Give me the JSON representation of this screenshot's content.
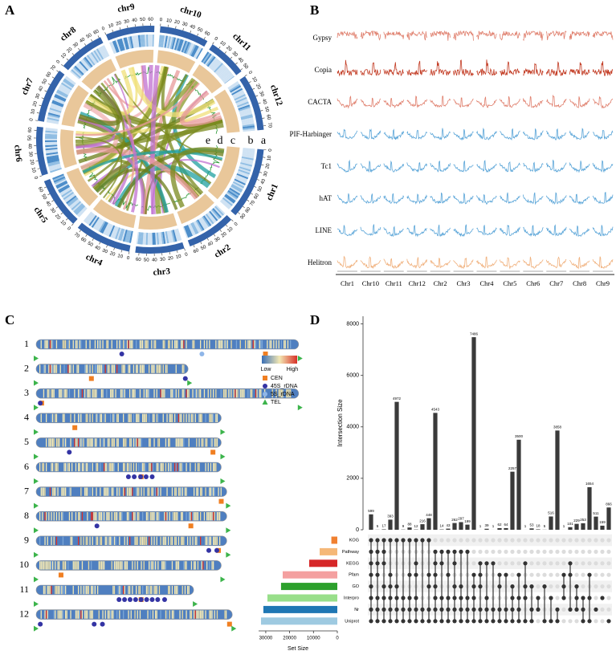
{
  "chart_data": [
    {
      "type": "circos",
      "panel": "A",
      "chromosomes": [
        {
          "name": "chr1",
          "length": 95,
          "ticks": [
            0,
            10,
            20,
            30,
            40,
            50,
            60,
            70,
            80,
            90
          ]
        },
        {
          "name": "chr2",
          "length": 65,
          "ticks": [
            0,
            10,
            20,
            30,
            40,
            50,
            60
          ]
        },
        {
          "name": "chr3",
          "length": 65,
          "ticks": [
            0,
            10,
            20,
            30,
            40,
            50,
            60
          ]
        },
        {
          "name": "chr4",
          "length": 75,
          "ticks": [
            0,
            10,
            20,
            30,
            40,
            50,
            60,
            70
          ]
        },
        {
          "name": "chr5",
          "length": 68,
          "ticks": [
            0,
            10,
            20,
            30,
            40,
            50,
            60
          ]
        },
        {
          "name": "chr6",
          "length": 65,
          "ticks": [
            0,
            10,
            20,
            30,
            40,
            50,
            60
          ]
        },
        {
          "name": "chr7",
          "length": 72,
          "ticks": [
            0,
            10,
            20,
            30,
            40,
            50,
            60,
            70
          ]
        },
        {
          "name": "chr8",
          "length": 62,
          "ticks": [
            0,
            10,
            20,
            30,
            40,
            50,
            60
          ]
        },
        {
          "name": "chr9",
          "length": 65,
          "ticks": [
            0,
            10,
            20,
            30,
            40,
            50,
            60
          ]
        },
        {
          "name": "chr10",
          "length": 65,
          "ticks": [
            0,
            10,
            20,
            30,
            40,
            50,
            60
          ]
        },
        {
          "name": "chr11",
          "length": 52,
          "ticks": [
            0,
            10,
            20,
            30,
            40,
            50
          ]
        },
        {
          "name": "chr12",
          "length": 75,
          "ticks": [
            0,
            10,
            20,
            30,
            40,
            50,
            60,
            70
          ]
        }
      ],
      "tracks": [
        "a",
        "b",
        "c",
        "d",
        "e"
      ]
    },
    {
      "type": "te-density",
      "panel": "B",
      "series": [
        {
          "name": "Gypsy",
          "color": "#e0806e"
        },
        {
          "name": "Copia",
          "color": "#c23a22"
        },
        {
          "name": "CACTA",
          "color": "#e0806e"
        },
        {
          "name": "PIF-Harbinger",
          "color": "#5aa5d8"
        },
        {
          "name": "Tc1",
          "color": "#5aa5d8"
        },
        {
          "name": "hAT",
          "color": "#5aa5d8"
        },
        {
          "name": "LINE",
          "color": "#5aa5d8"
        },
        {
          "name": "Helitron",
          "color": "#f0b07c"
        }
      ],
      "categories": [
        "Chr1",
        "Chr10",
        "Chr11",
        "Chr12",
        "Chr2",
        "Chr3",
        "Chr4",
        "Chr5",
        "Chr6",
        "Chr7",
        "Chr8",
        "Chr9"
      ]
    },
    {
      "type": "ideogram",
      "panel": "C",
      "chromosomes": [
        {
          "label": "1",
          "length": 95,
          "cen": 83,
          "rdna45s": [
            31
          ],
          "rdna5s": [
            60
          ]
        },
        {
          "label": "2",
          "length": 55,
          "cen": 20,
          "rdna45s": [
            54
          ],
          "rdna5s": []
        },
        {
          "label": "3",
          "length": 95,
          "cen": 2,
          "rdna45s": [
            1.5
          ],
          "rdna5s": []
        },
        {
          "label": "4",
          "length": 67,
          "cen": 14,
          "rdna45s": [],
          "rdna5s": []
        },
        {
          "label": "5",
          "length": 67,
          "cen": 64,
          "rdna45s": [
            12
          ],
          "rdna5s": []
        },
        {
          "label": "6",
          "length": 67,
          "cen": 38,
          "rdna45s": [
            33.4,
            35.5,
            37.8,
            39.8,
            42
          ],
          "rdna5s": []
        },
        {
          "label": "7",
          "length": 69,
          "cen": 67,
          "rdna45s": [],
          "rdna5s": []
        },
        {
          "label": "8",
          "length": 69,
          "cen": 56,
          "rdna45s": [
            22
          ],
          "rdna5s": []
        },
        {
          "label": "9",
          "length": 69,
          "cen": 66,
          "rdna45s": [
            62.5,
            65.4
          ],
          "rdna5s": []
        },
        {
          "label": "10",
          "length": 67,
          "cen": 9,
          "rdna45s": [],
          "rdna5s": []
        },
        {
          "label": "11",
          "length": 57,
          "cen": 38,
          "rdna45s": [
            30,
            32,
            34,
            36,
            38,
            40,
            42,
            44,
            46.5
          ],
          "rdna5s": []
        },
        {
          "label": "12",
          "length": 71,
          "cen": 70,
          "rdna45s": [
            1.5,
            21,
            24
          ],
          "rdna5s": []
        }
      ],
      "legend": {
        "low": "Low",
        "high": "High",
        "colors": [
          "#3a6fb5",
          "#f3e8b4",
          "#d73027"
        ]
      },
      "markers": [
        {
          "name": "CEN",
          "color": "#f07f22"
        },
        {
          "name": "45S_rDNA",
          "color": "#3434a4"
        },
        {
          "name": "5S_rDNA",
          "color": "#8fb6e8"
        },
        {
          "name": "TEL",
          "color": "#3cb44b"
        }
      ]
    },
    {
      "type": "upset",
      "panel": "D",
      "ylabel": "Intersection Size",
      "xlabel": "Set Size",
      "values": [
        599,
        5,
        17,
        393,
        4972,
        9,
        88,
        12,
        216,
        448,
        4543,
        14,
        43,
        262,
        297,
        199,
        7486,
        1,
        39,
        1,
        62,
        64,
        2257,
        3500,
        1,
        53,
        18,
        5,
        516,
        3858,
        1,
        101,
        229,
        253,
        1654,
        511,
        159,
        866
      ],
      "ylim": [
        0,
        8300
      ],
      "yticks": [
        0,
        2000,
        4000,
        6000,
        8000
      ],
      "sets": [
        {
          "name": "KOG",
          "color": "#f08030",
          "size": 2500
        },
        {
          "name": "Pathway",
          "color": "#f5b878",
          "size": 7400
        },
        {
          "name": "KEGG",
          "color": "#d62728",
          "size": 11800
        },
        {
          "name": "Pfam",
          "color": "#f4a0a0",
          "size": 22900
        },
        {
          "name": "GO",
          "color": "#2ca02c",
          "size": 23600
        },
        {
          "name": "Interpro",
          "color": "#98df8a",
          "size": 29300
        },
        {
          "name": "Nr",
          "color": "#1f77b4",
          "size": 31000
        },
        {
          "name": "Uniprot",
          "color": "#9ecae1",
          "size": 32000
        }
      ],
      "xlim": [
        33000,
        0
      ],
      "xticks": [
        30000,
        20000,
        10000,
        0
      ],
      "membership": [
        [
          0,
          1,
          2,
          3,
          4,
          5,
          6,
          7
        ],
        [
          0,
          1,
          2,
          3,
          5,
          6,
          7
        ],
        [
          0,
          1,
          2,
          4,
          5,
          6,
          7
        ],
        [
          0,
          3,
          4,
          5,
          6,
          7
        ],
        [
          0,
          4,
          5,
          6,
          7
        ],
        [
          0,
          5,
          6,
          7
        ],
        [
          0,
          3,
          5,
          6,
          7
        ],
        [
          0,
          2,
          3,
          5,
          6,
          7
        ],
        [
          0,
          6,
          7
        ],
        [
          0,
          3,
          4,
          6,
          7
        ],
        [
          1,
          2,
          3,
          4,
          5,
          6,
          7
        ],
        [
          1,
          2,
          5,
          6,
          7
        ],
        [
          1,
          3,
          5,
          6,
          7
        ],
        [
          1,
          2,
          4,
          5,
          6,
          7
        ],
        [
          1,
          4,
          5,
          6,
          7
        ],
        [
          1,
          5,
          6,
          7
        ],
        [
          3,
          4,
          5,
          6,
          7
        ],
        [
          2,
          3,
          4,
          6,
          7
        ],
        [
          2,
          5,
          6,
          7
        ],
        [
          2,
          6,
          7
        ],
        [
          3,
          4,
          6,
          7
        ],
        [
          3,
          6,
          7
        ],
        [
          4,
          5,
          6,
          7
        ],
        [
          3,
          5,
          6,
          7
        ],
        [
          2,
          4,
          5,
          7
        ],
        [
          4,
          6,
          7
        ],
        [
          5,
          6
        ],
        [
          4,
          7
        ],
        [
          5,
          7
        ],
        [
          6,
          7
        ],
        [
          3,
          4,
          5
        ],
        [
          2,
          3,
          6
        ],
        [
          4,
          5,
          6
        ],
        [
          5,
          6,
          7
        ],
        [
          3,
          5,
          7
        ],
        [
          6
        ],
        [
          5
        ],
        [
          7
        ]
      ]
    }
  ]
}
